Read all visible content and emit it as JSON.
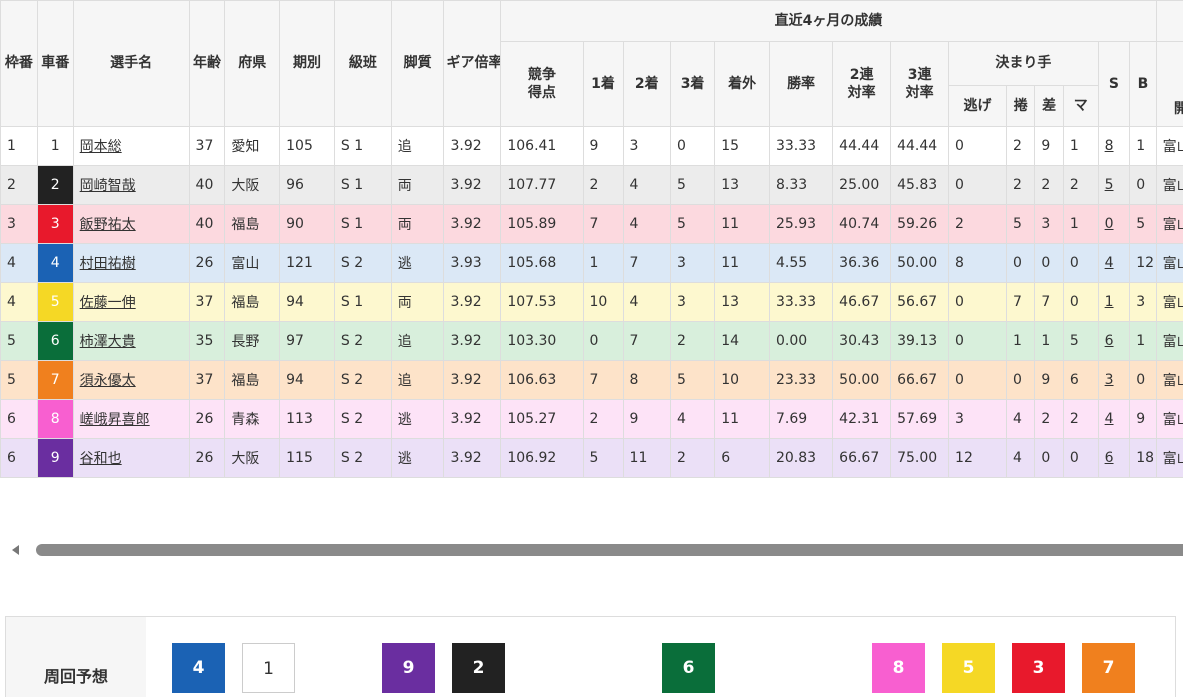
{
  "header": {
    "waku": "枠番",
    "sha": "車番",
    "name": "選手名",
    "age": "年齢",
    "pref": "府県",
    "term": "期別",
    "class": "級班",
    "style": "脚質",
    "gear": "ギア倍率",
    "recent": "直近4ヶ月の成績",
    "score_l1": "競争",
    "score_l2": "得点",
    "first": "1着",
    "second": "2着",
    "third": "3着",
    "out": "着外",
    "win_rate": "勝率",
    "ren2_l1": "2連",
    "ren2_l2": "対率",
    "ren3_l1": "3連",
    "ren3_l2": "対率",
    "kimarite": "決まり手",
    "nige": "逃げ",
    "makuri": "捲",
    "sashi": "差",
    "mark": "マ",
    "s": "S",
    "b": "B",
    "venue": "開催"
  },
  "rows": [
    {
      "waku": "1",
      "car": "1",
      "name": "岡本総",
      "age": "37",
      "pref": "愛知",
      "term": "105",
      "cls": "S 1",
      "style": "追",
      "gear": "3.92",
      "score": "106.41",
      "c1": "9",
      "c2": "3",
      "c3": "0",
      "out": "15",
      "win": "33.33",
      "r2": "44.44",
      "r3": "44.44",
      "nige": "0",
      "makuri": "2",
      "sashi": "9",
      "mark": "1",
      "s": "8",
      "b": "1",
      "venue": "富山"
    },
    {
      "waku": "2",
      "car": "2",
      "name": "岡崎智哉",
      "age": "40",
      "pref": "大阪",
      "term": "96",
      "cls": "S 1",
      "style": "両",
      "gear": "3.92",
      "score": "107.77",
      "c1": "2",
      "c2": "4",
      "c3": "5",
      "out": "13",
      "win": "8.33",
      "r2": "25.00",
      "r3": "45.83",
      "nige": "0",
      "makuri": "2",
      "sashi": "2",
      "mark": "2",
      "s": "5",
      "b": "0",
      "venue": "富山"
    },
    {
      "waku": "3",
      "car": "3",
      "name": "飯野祐太",
      "age": "40",
      "pref": "福島",
      "term": "90",
      "cls": "S 1",
      "style": "両",
      "gear": "3.92",
      "score": "105.89",
      "c1": "7",
      "c2": "4",
      "c3": "5",
      "out": "11",
      "win": "25.93",
      "r2": "40.74",
      "r3": "59.26",
      "nige": "2",
      "makuri": "5",
      "sashi": "3",
      "mark": "1",
      "s": "0",
      "b": "5",
      "venue": "富山"
    },
    {
      "waku": "4",
      "car": "4",
      "name": "村田祐樹",
      "age": "26",
      "pref": "富山",
      "term": "121",
      "cls": "S 2",
      "style": "逃",
      "gear": "3.93",
      "score": "105.68",
      "c1": "1",
      "c2": "7",
      "c3": "3",
      "out": "11",
      "win": "4.55",
      "r2": "36.36",
      "r3": "50.00",
      "nige": "8",
      "makuri": "0",
      "sashi": "0",
      "mark": "0",
      "s": "4",
      "b": "12",
      "venue": "富山"
    },
    {
      "waku": "4",
      "car": "5",
      "name": "佐藤一伸",
      "age": "37",
      "pref": "福島",
      "term": "94",
      "cls": "S 1",
      "style": "両",
      "gear": "3.92",
      "score": "107.53",
      "c1": "10",
      "c2": "4",
      "c3": "3",
      "out": "13",
      "win": "33.33",
      "r2": "46.67",
      "r3": "56.67",
      "nige": "0",
      "makuri": "7",
      "sashi": "7",
      "mark": "0",
      "s": "1",
      "b": "3",
      "venue": "富山"
    },
    {
      "waku": "5",
      "car": "6",
      "name": "柿澤大貴",
      "age": "35",
      "pref": "長野",
      "term": "97",
      "cls": "S 2",
      "style": "追",
      "gear": "3.92",
      "score": "103.30",
      "c1": "0",
      "c2": "7",
      "c3": "2",
      "out": "14",
      "win": "0.00",
      "r2": "30.43",
      "r3": "39.13",
      "nige": "0",
      "makuri": "1",
      "sashi": "1",
      "mark": "5",
      "s": "6",
      "b": "1",
      "venue": "富山"
    },
    {
      "waku": "5",
      "car": "7",
      "name": "須永優太",
      "age": "37",
      "pref": "福島",
      "term": "94",
      "cls": "S 2",
      "style": "追",
      "gear": "3.92",
      "score": "106.63",
      "c1": "7",
      "c2": "8",
      "c3": "5",
      "out": "10",
      "win": "23.33",
      "r2": "50.00",
      "r3": "66.67",
      "nige": "0",
      "makuri": "0",
      "sashi": "9",
      "mark": "6",
      "s": "3",
      "b": "0",
      "venue": "富山"
    },
    {
      "waku": "6",
      "car": "8",
      "name": "嵯峨昇喜郎",
      "age": "26",
      "pref": "青森",
      "term": "113",
      "cls": "S 2",
      "style": "逃",
      "gear": "3.92",
      "score": "105.27",
      "c1": "2",
      "c2": "9",
      "c3": "4",
      "out": "11",
      "win": "7.69",
      "r2": "42.31",
      "r3": "57.69",
      "nige": "3",
      "makuri": "4",
      "sashi": "2",
      "mark": "2",
      "s": "4",
      "b": "9",
      "venue": "富山"
    },
    {
      "waku": "6",
      "car": "9",
      "name": "谷和也",
      "age": "26",
      "pref": "大阪",
      "term": "115",
      "cls": "S 2",
      "style": "逃",
      "gear": "3.92",
      "score": "106.92",
      "c1": "5",
      "c2": "11",
      "c3": "2",
      "out": "6",
      "win": "20.83",
      "r2": "66.67",
      "r3": "75.00",
      "nige": "12",
      "makuri": "4",
      "sashi": "0",
      "mark": "0",
      "s": "6",
      "b": "18",
      "venue": "富山"
    }
  ],
  "car_colors": {
    "1": {
      "bg": "#ffffff",
      "fg": "#333333",
      "row": "#ffffff"
    },
    "2": {
      "bg": "#222222",
      "fg": "#ffffff",
      "row": "#ececec"
    },
    "3": {
      "bg": "#e8192c",
      "fg": "#ffffff",
      "row": "#fcd9df"
    },
    "4": {
      "bg": "#1b62b4",
      "fg": "#ffffff",
      "row": "#dbe8f6"
    },
    "5": {
      "bg": "#f5d825",
      "fg": "#ffffff",
      "row": "#fdf8cf"
    },
    "6": {
      "bg": "#0a6e3a",
      "fg": "#ffffff",
      "row": "#d8efdc"
    },
    "7": {
      "bg": "#f0801e",
      "fg": "#ffffff",
      "row": "#fde3c9"
    },
    "8": {
      "bg": "#f85fd0",
      "fg": "#ffffff",
      "row": "#fde3f7"
    },
    "9": {
      "bg": "#6a2ea0",
      "fg": "#ffffff",
      "row": "#ebe0f7"
    }
  },
  "prediction": {
    "label": "周回予想",
    "chips": [
      "4",
      "1",
      "9",
      "2",
      "6",
      "8",
      "5",
      "3",
      "7"
    ]
  }
}
